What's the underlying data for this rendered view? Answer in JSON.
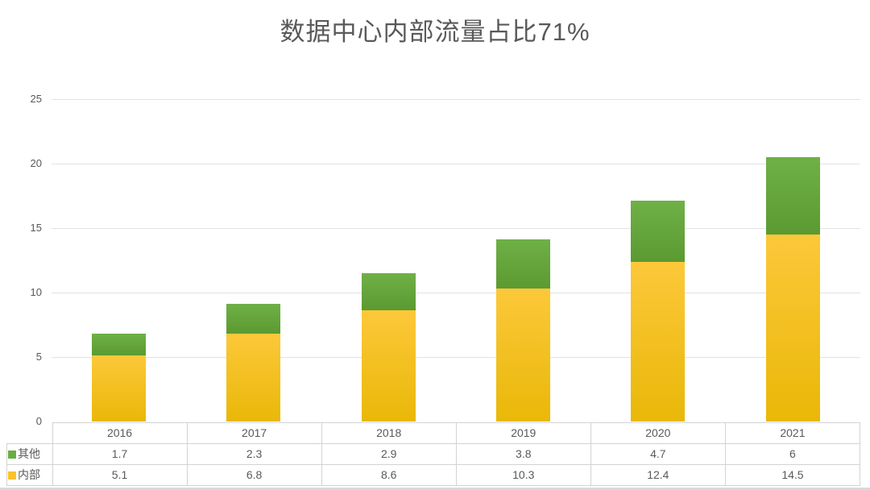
{
  "chart_data": {
    "type": "bar",
    "stacked": true,
    "title": "数据中心内部流量占比71%",
    "xlabel": "",
    "ylabel": "",
    "categories": [
      "2016",
      "2017",
      "2018",
      "2019",
      "2020",
      "2021"
    ],
    "series": [
      {
        "name": "其他",
        "values": [
          1.7,
          2.3,
          2.9,
          3.8,
          4.7,
          6
        ],
        "color_top": "#6fb047",
        "color_bottom": "#5b9a31",
        "swatch": "#6aad43"
      },
      {
        "name": "内部",
        "values": [
          5.1,
          6.8,
          8.6,
          10.3,
          12.4,
          14.5
        ],
        "color_top": "#fcc83a",
        "color_bottom": "#e9b808",
        "swatch": "#fcc12d"
      }
    ],
    "ylim": [
      0,
      25
    ],
    "yticks": [
      0,
      5,
      10,
      15,
      20,
      25
    ],
    "grid": true,
    "legend_position": "table-left-column",
    "data_table_shown": true
  },
  "colors": {
    "background": "#ffffff",
    "text": "#595959",
    "gridline": "#e2e2e2",
    "table_border": "#d3d3d3",
    "bottom_strip": "#d9d9d9"
  }
}
